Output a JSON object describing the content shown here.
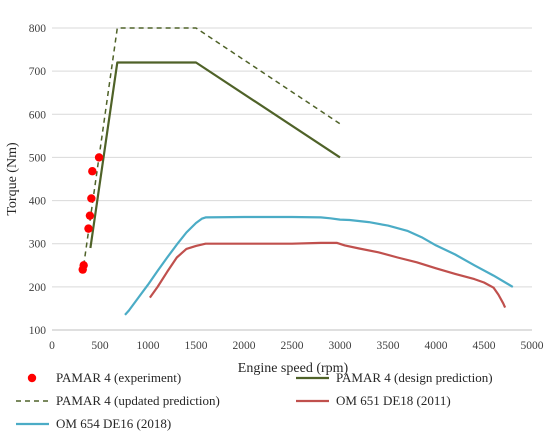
{
  "chart_data": {
    "type": "line",
    "title": "",
    "xlabel": "Engine speed (rpm)",
    "ylabel": "Torque (Nm)",
    "xlim": [
      0,
      5000
    ],
    "ylim": [
      100,
      800
    ],
    "xticks": [
      0,
      500,
      1000,
      1500,
      2000,
      2500,
      3000,
      3500,
      4000,
      4500,
      5000
    ],
    "yticks": [
      100,
      200,
      300,
      400,
      500,
      600,
      700,
      800
    ],
    "grid": "horizontal",
    "legend_position": "bottom",
    "series": [
      {
        "name": "PAMAR 4 (experiment)",
        "style": "markers",
        "color": "#ff0000",
        "points": [
          [
            320,
            240
          ],
          [
            330,
            250
          ],
          [
            380,
            335
          ],
          [
            395,
            365
          ],
          [
            410,
            405
          ],
          [
            420,
            468
          ],
          [
            490,
            500
          ]
        ]
      },
      {
        "name": "PAMAR 4 (design prediction)",
        "style": "solid",
        "color": "#4f6228",
        "points": [
          [
            400,
            290
          ],
          [
            680,
            720
          ],
          [
            1500,
            720
          ],
          [
            3000,
            500
          ]
        ]
      },
      {
        "name": "PAMAR 4 (updated prediction)",
        "style": "dashed",
        "color": "#4f6228",
        "points": [
          [
            330,
            250
          ],
          [
            680,
            800
          ],
          [
            1500,
            800
          ],
          [
            3000,
            578
          ]
        ]
      },
      {
        "name": "OM 651 DE18 (2011)",
        "style": "solid",
        "color": "#c0504d",
        "points": [
          [
            1020,
            175
          ],
          [
            1100,
            200
          ],
          [
            1200,
            235
          ],
          [
            1300,
            268
          ],
          [
            1400,
            288
          ],
          [
            1500,
            295
          ],
          [
            1600,
            300
          ],
          [
            2000,
            300
          ],
          [
            2500,
            300
          ],
          [
            2800,
            302
          ],
          [
            2970,
            302
          ],
          [
            3050,
            296
          ],
          [
            3200,
            289
          ],
          [
            3400,
            280
          ],
          [
            3600,
            268
          ],
          [
            3800,
            257
          ],
          [
            4000,
            243
          ],
          [
            4200,
            230
          ],
          [
            4400,
            218
          ],
          [
            4500,
            210
          ],
          [
            4600,
            198
          ],
          [
            4650,
            182
          ],
          [
            4700,
            162
          ],
          [
            4720,
            152
          ]
        ]
      },
      {
        "name": "OM 654 DE16 (2018)",
        "style": "solid",
        "color": "#4bacc6",
        "points": [
          [
            760,
            135
          ],
          [
            800,
            145
          ],
          [
            900,
            175
          ],
          [
            1000,
            205
          ],
          [
            1100,
            237
          ],
          [
            1200,
            268
          ],
          [
            1300,
            298
          ],
          [
            1400,
            326
          ],
          [
            1500,
            348
          ],
          [
            1560,
            358
          ],
          [
            1600,
            361
          ],
          [
            2000,
            362
          ],
          [
            2500,
            362
          ],
          [
            2800,
            361
          ],
          [
            2900,
            359
          ],
          [
            3000,
            356
          ],
          [
            3100,
            355
          ],
          [
            3300,
            350
          ],
          [
            3500,
            342
          ],
          [
            3700,
            330
          ],
          [
            3850,
            315
          ],
          [
            4000,
            296
          ],
          [
            4200,
            275
          ],
          [
            4400,
            250
          ],
          [
            4600,
            226
          ],
          [
            4800,
            200
          ]
        ]
      }
    ]
  }
}
